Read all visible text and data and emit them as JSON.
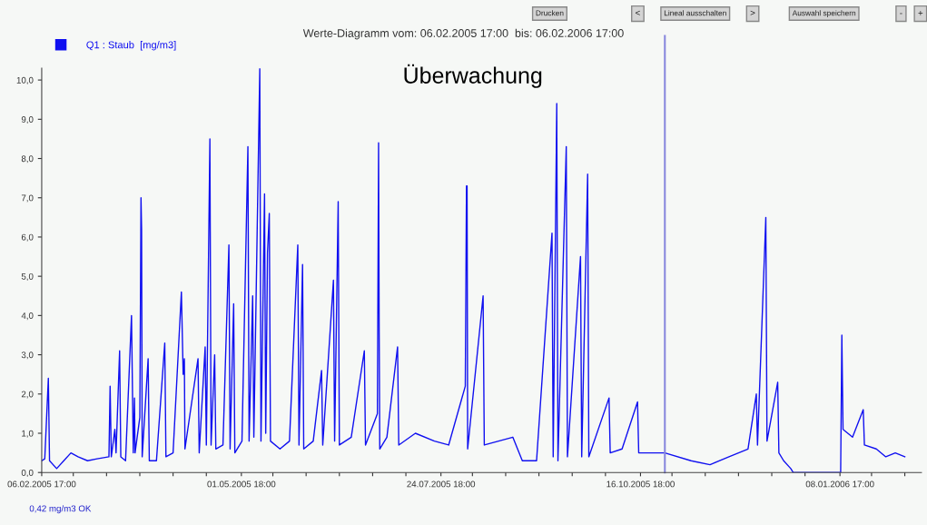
{
  "chart_data": {
    "type": "line",
    "title": "Werte-Diagramm vom: 06.02.2005 17:00  bis: 06.02.2006 17:00",
    "annotations": [
      "Überwachung",
      "0,42 mg/m3 OK",
      "Drucken",
      "<",
      "Lineal ausschalten",
      ">",
      "Auswahl speichern",
      "-",
      "+"
    ],
    "series": [
      {
        "name": "Q1 : Staub  [mg/m3]",
        "color": "#1010f0",
        "x": [
          "2005-02-06T17:00",
          "2005-02-08",
          "2005-02-09T12:00",
          "2005-02-10",
          "2005-02-13",
          "2005-02-16",
          "2005-02-19",
          "2005-02-22",
          "2005-02-26",
          "2005-03-02",
          "2005-03-07T00:00",
          "2005-03-07T12:00",
          "2005-03-08",
          "2005-03-09T12:00",
          "2005-03-10",
          "2005-03-11T12:00",
          "2005-03-12",
          "2005-03-14",
          "2005-03-16T12:00",
          "2005-03-17T06:00",
          "2005-03-17T18:00",
          "2005-03-18",
          "2005-03-20T00:00",
          "2005-03-20T12:00",
          "2005-03-20T18:00",
          "2005-03-21",
          "2005-03-23T12:00",
          "2005-03-24",
          "2005-03-27",
          "2005-03-30T12:00",
          "2005-03-31",
          "2005-04-03",
          "2005-04-06T12:00",
          "2005-04-07T06:00",
          "2005-04-07T18:00",
          "2005-04-08",
          "2005-04-13T12:00",
          "2005-04-14",
          "2005-04-16T12:00",
          "2005-04-17",
          "2005-04-18T12:00",
          "2005-04-19",
          "2005-04-20T12:00",
          "2005-04-21",
          "2005-04-24",
          "2005-04-26T12:00",
          "2005-04-27",
          "2005-04-28T12:00",
          "2005-04-29",
          "2005-05-02",
          "2005-05-04T12:00",
          "2005-05-05",
          "2005-05-06T12:00",
          "2005-05-07",
          "2005-05-09T12:00",
          "2005-05-10",
          "2005-05-11T12:00",
          "2005-05-12",
          "2005-05-12T18:00",
          "2005-05-13T12:00",
          "2005-05-14",
          "2005-05-18",
          "2005-05-22",
          "2005-05-25T12:00",
          "2005-05-26",
          "2005-05-27T12:00",
          "2005-05-28",
          "2005-06-01",
          "2005-06-04T12:00",
          "2005-06-05",
          "2005-06-09T12:00",
          "2005-06-10",
          "2005-06-11T12:00",
          "2005-06-12",
          "2005-06-17",
          "2005-06-22T12:00",
          "2005-06-23",
          "2005-06-28T00:00",
          "2005-06-28T12:00",
          "2005-06-28T18:00",
          "2005-06-29",
          "2005-07-02",
          "2005-07-06T12:00",
          "2005-07-07",
          "2005-07-14",
          "2005-07-22",
          "2005-07-28",
          "2005-08-04T00:00",
          "2005-08-04T12:00",
          "2005-08-04T18:00",
          "2005-08-05",
          "2005-08-11T12:00",
          "2005-08-12",
          "2005-08-18",
          "2005-08-24",
          "2005-08-28",
          "2005-09-03",
          "2005-09-09T12:00",
          "2005-09-10",
          "2005-09-11T12:00",
          "2005-09-12",
          "2005-09-15T12:00",
          "2005-09-16",
          "2005-09-21T12:00",
          "2005-09-22",
          "2005-09-24T12:00",
          "2005-09-25",
          "2005-10-03T12:00",
          "2005-10-04",
          "2005-10-09",
          "2005-10-15T12:00",
          "2005-10-16",
          "2005-10-27",
          "2005-11-07",
          "2005-11-15",
          "2005-11-23",
          "2005-12-01",
          "2005-12-04T12:00",
          "2005-12-05",
          "2005-12-08T12:00",
          "2005-12-09",
          "2005-12-13T12:00",
          "2005-12-14",
          "2005-12-16",
          "2005-12-19",
          "2005-12-20",
          "2006-01-09T00:00",
          "2006-01-09T12:00",
          "2006-01-10",
          "2006-01-14",
          "2006-01-18T12:00",
          "2006-01-19",
          "2006-01-24",
          "2006-01-28",
          "2006-02-01",
          "2006-02-05"
        ],
        "values": [
          0.3,
          0.35,
          2.4,
          0.3,
          0.1,
          0.3,
          0.5,
          0.4,
          0.3,
          0.35,
          0.4,
          2.2,
          0.4,
          1.1,
          0.5,
          3.1,
          0.4,
          0.3,
          4.0,
          0.5,
          1.9,
          0.5,
          1.4,
          7.0,
          6.2,
          0.4,
          2.9,
          0.3,
          0.3,
          3.3,
          0.4,
          0.5,
          4.6,
          2.5,
          2.9,
          0.6,
          2.9,
          0.5,
          3.2,
          0.7,
          8.5,
          0.7,
          3.0,
          0.6,
          0.7,
          5.8,
          0.6,
          4.3,
          0.5,
          0.8,
          8.3,
          0.8,
          4.5,
          0.9,
          10.3,
          0.8,
          7.1,
          1.0,
          5.6,
          6.6,
          0.8,
          0.6,
          0.8,
          5.8,
          0.7,
          5.3,
          0.6,
          0.8,
          2.6,
          0.7,
          4.9,
          0.8,
          6.9,
          0.7,
          0.9,
          3.1,
          0.7,
          1.5,
          8.4,
          3.6,
          0.6,
          0.9,
          3.2,
          0.7,
          1.0,
          0.8,
          0.7,
          2.2,
          7.3,
          7.3,
          0.6,
          4.5,
          0.7,
          0.8,
          0.9,
          0.3,
          0.3,
          6.1,
          0.4,
          9.4,
          0.3,
          8.3,
          0.4,
          5.5,
          0.4,
          7.6,
          0.4,
          1.9,
          0.5,
          0.6,
          1.8,
          0.5,
          0.5,
          0.3,
          0.2,
          0.4,
          0.6,
          2.0,
          0.7,
          6.5,
          0.8,
          2.3,
          0.5,
          0.3,
          0.1,
          0.0,
          0.0,
          3.5,
          1.1,
          0.9,
          1.6,
          0.7,
          0.6,
          0.4,
          0.5,
          0.4
        ]
      }
    ],
    "xlim": [
      "2005-02-06T17:00",
      "2006-02-12"
    ],
    "xticks": [
      {
        "value": "2005-02-06T17:00",
        "label": "06.02.2005 17:00"
      },
      {
        "value": "2005-02-20",
        "label": null
      },
      {
        "value": "2005-03-06",
        "label": null
      },
      {
        "value": "2005-03-20",
        "label": null
      },
      {
        "value": "2005-04-03",
        "label": null
      },
      {
        "value": "2005-04-17",
        "label": null
      },
      {
        "value": "2005-05-01T18:00",
        "label": "01.05.2005 18:00"
      },
      {
        "value": "2005-05-15",
        "label": null
      },
      {
        "value": "2005-05-29",
        "label": null
      },
      {
        "value": "2005-06-12",
        "label": null
      },
      {
        "value": "2005-06-26",
        "label": null
      },
      {
        "value": "2005-07-10",
        "label": null
      },
      {
        "value": "2005-07-24T18:00",
        "label": "24.07.2005 18:00"
      },
      {
        "value": "2005-08-07",
        "label": null
      },
      {
        "value": "2005-08-21",
        "label": null
      },
      {
        "value": "2005-09-04",
        "label": null
      },
      {
        "value": "2005-09-18",
        "label": null
      },
      {
        "value": "2005-10-02",
        "label": null
      },
      {
        "value": "2005-10-16T18:00",
        "label": "16.10.2005 18:00"
      },
      {
        "value": "2005-10-30",
        "label": null
      },
      {
        "value": "2005-11-13",
        "label": null
      },
      {
        "value": "2005-11-27",
        "label": null
      },
      {
        "value": "2005-12-11",
        "label": null
      },
      {
        "value": "2005-12-25",
        "label": null
      },
      {
        "value": "2006-01-08T17:00",
        "label": "08.01.2006 17:00"
      },
      {
        "value": "2006-01-22",
        "label": null
      },
      {
        "value": "2006-02-05",
        "label": null
      }
    ],
    "ylim": [
      0,
      10.3
    ],
    "yticks": [
      {
        "value": 0,
        "label": "0,0"
      },
      {
        "value": 1,
        "label": "1,0"
      },
      {
        "value": 2,
        "label": "2,0"
      },
      {
        "value": 3,
        "label": "3,0"
      },
      {
        "value": 4,
        "label": "4,0"
      },
      {
        "value": 5,
        "label": "5,0"
      },
      {
        "value": 6,
        "label": "6,0"
      },
      {
        "value": 7,
        "label": "7,0"
      },
      {
        "value": 8,
        "label": "8,0"
      },
      {
        "value": 9,
        "label": "9,0"
      },
      {
        "value": 10,
        "label": "10,0"
      }
    ],
    "ref_lines": [
      {
        "axis": "x",
        "value": "2005-10-27",
        "color": "#8888dd"
      }
    ],
    "legend": "top left",
    "grid": false,
    "marker": "none",
    "line_style": "solid"
  }
}
